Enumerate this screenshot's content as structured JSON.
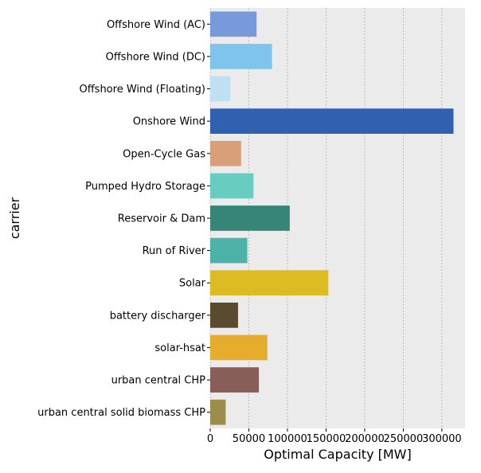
{
  "chart_data": {
    "type": "bar",
    "orientation": "horizontal",
    "xlabel": "Optimal Capacity [MW]",
    "ylabel": "carrier",
    "xlim": [
      0,
      330000
    ],
    "x_ticks": [
      0,
      50000,
      100000,
      150000,
      200000,
      250000,
      300000
    ],
    "x_tick_labels": [
      "0",
      "50000",
      "100000",
      "150000",
      "200000",
      "250000",
      "300000"
    ],
    "grid": "vertical dashed",
    "categories": [
      "Offshore Wind (AC)",
      "Offshore Wind (DC)",
      "Offshore Wind (Floating)",
      "Onshore Wind",
      "Open-Cycle Gas",
      "Pumped Hydro Storage",
      "Reservoir & Dam",
      "Run of River",
      "Solar",
      "battery discharger",
      "solar-hsat",
      "urban central CHP",
      "urban central solid biomass CHP"
    ],
    "values": [
      60000,
      80000,
      26000,
      315000,
      40000,
      56000,
      103000,
      48000,
      153000,
      36000,
      74000,
      63000,
      20000
    ],
    "colors": [
      "#7899da",
      "#7fc4ea",
      "#bfe0f2",
      "#3060b0",
      "#d8a078",
      "#66cdc0",
      "#358676",
      "#4db2a8",
      "#dcbc22",
      "#5a4a2e",
      "#e6ac2c",
      "#875f58",
      "#9a8e4a"
    ]
  }
}
